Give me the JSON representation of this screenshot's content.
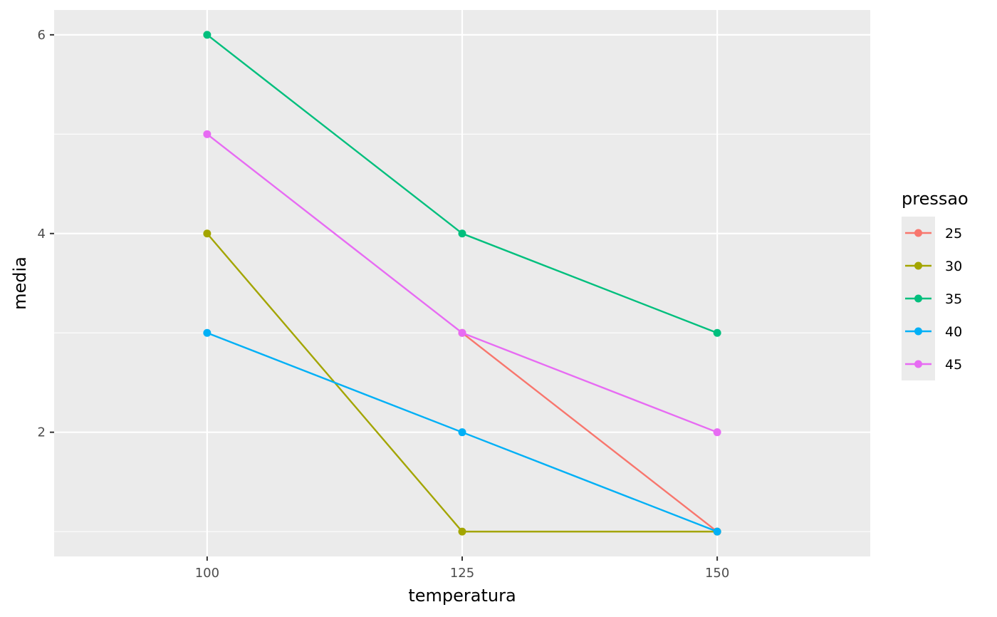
{
  "chart_data": {
    "type": "line",
    "xlabel": "temperatura",
    "ylabel": "media",
    "x": [
      100,
      125,
      150
    ],
    "x_tick_labels": [
      "100",
      "125",
      "150"
    ],
    "y_tick_labels": [
      "2",
      "4",
      "6"
    ],
    "xlim": [
      85,
      165
    ],
    "ylim": [
      0.75,
      6.25
    ],
    "grid": true,
    "legend": {
      "title": "pressao",
      "position": "right"
    },
    "series": [
      {
        "name": "25",
        "color": "#F8766D",
        "values": [
          null,
          3,
          1
        ]
      },
      {
        "name": "30",
        "color": "#A3A500",
        "values": [
          4,
          1,
          1
        ]
      },
      {
        "name": "35",
        "color": "#00BF7D",
        "values": [
          6,
          4,
          3
        ]
      },
      {
        "name": "40",
        "color": "#00B0F6",
        "values": [
          3,
          2,
          1
        ]
      },
      {
        "name": "45",
        "color": "#E76BF3",
        "values": [
          5,
          3,
          2
        ]
      }
    ]
  },
  "colors": {
    "panel_background": "#EBEBEB",
    "gridline": "#FFFFFF"
  }
}
